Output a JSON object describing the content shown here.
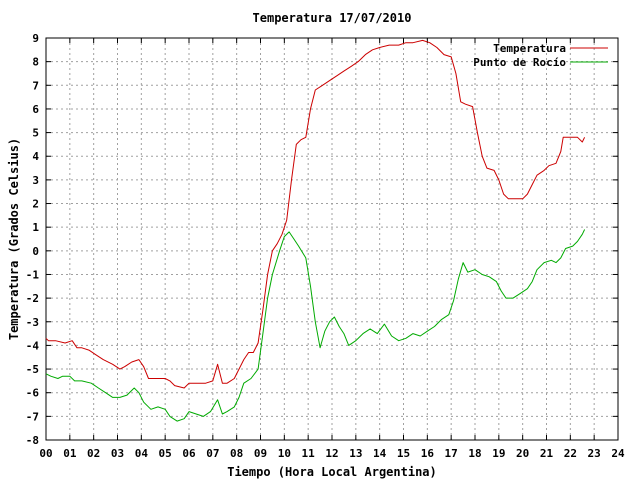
{
  "chart_data": {
    "type": "line",
    "title": "Temperatura 17/07/2010",
    "xlabel": "Tiempo (Hora Local Argentina)",
    "ylabel": "Temperatura (Grados Celsius)",
    "xlim": [
      0,
      24
    ],
    "ylim": [
      -8,
      9
    ],
    "x_ticks": [
      "00",
      "01",
      "02",
      "03",
      "04",
      "05",
      "06",
      "07",
      "08",
      "09",
      "10",
      "11",
      "12",
      "13",
      "14",
      "15",
      "16",
      "17",
      "18",
      "19",
      "20",
      "21",
      "22",
      "23",
      "24"
    ],
    "y_ticks": [
      "-8",
      "-7",
      "-6",
      "-5",
      "-4",
      "-3",
      "-2",
      "-1",
      "0",
      "1",
      "2",
      "3",
      "4",
      "5",
      "6",
      "7",
      "8",
      "9"
    ],
    "grid": true,
    "legend_position": "top-right",
    "colors": {
      "temperatura": "#cc0000",
      "punto_de_rocio": "#00aa00",
      "grid": "#a0a0a0"
    },
    "series": [
      {
        "name": "Temperatura",
        "color": "#cc0000",
        "points": [
          [
            0.0,
            -3.7
          ],
          [
            0.1,
            -3.8
          ],
          [
            0.4,
            -3.8
          ],
          [
            0.8,
            -3.9
          ],
          [
            1.1,
            -3.8
          ],
          [
            1.3,
            -4.1
          ],
          [
            1.5,
            -4.1
          ],
          [
            1.8,
            -4.2
          ],
          [
            2.1,
            -4.4
          ],
          [
            2.4,
            -4.6
          ],
          [
            2.8,
            -4.8
          ],
          [
            3.1,
            -5.0
          ],
          [
            3.3,
            -4.9
          ],
          [
            3.6,
            -4.7
          ],
          [
            3.9,
            -4.6
          ],
          [
            4.1,
            -4.9
          ],
          [
            4.3,
            -5.4
          ],
          [
            4.7,
            -5.4
          ],
          [
            5.0,
            -5.4
          ],
          [
            5.2,
            -5.5
          ],
          [
            5.4,
            -5.7
          ],
          [
            5.8,
            -5.8
          ],
          [
            6.0,
            -5.6
          ],
          [
            6.3,
            -5.6
          ],
          [
            6.7,
            -5.6
          ],
          [
            7.0,
            -5.5
          ],
          [
            7.2,
            -4.8
          ],
          [
            7.4,
            -5.6
          ],
          [
            7.6,
            -5.6
          ],
          [
            7.9,
            -5.4
          ],
          [
            8.1,
            -5.0
          ],
          [
            8.3,
            -4.6
          ],
          [
            8.5,
            -4.3
          ],
          [
            8.7,
            -4.3
          ],
          [
            8.9,
            -3.9
          ],
          [
            9.1,
            -2.5
          ],
          [
            9.3,
            -1.0
          ],
          [
            9.5,
            0.0
          ],
          [
            9.7,
            0.3
          ],
          [
            9.9,
            0.7
          ],
          [
            10.1,
            1.3
          ],
          [
            10.3,
            3.0
          ],
          [
            10.5,
            4.5
          ],
          [
            10.7,
            4.7
          ],
          [
            10.9,
            4.8
          ],
          [
            11.1,
            6.0
          ],
          [
            11.3,
            6.8
          ],
          [
            11.6,
            7.0
          ],
          [
            11.9,
            7.2
          ],
          [
            12.2,
            7.4
          ],
          [
            12.5,
            7.6
          ],
          [
            12.8,
            7.8
          ],
          [
            13.1,
            8.0
          ],
          [
            13.4,
            8.3
          ],
          [
            13.7,
            8.5
          ],
          [
            14.0,
            8.6
          ],
          [
            14.4,
            8.7
          ],
          [
            14.8,
            8.7
          ],
          [
            15.1,
            8.8
          ],
          [
            15.4,
            8.8
          ],
          [
            15.8,
            8.9
          ],
          [
            16.1,
            8.8
          ],
          [
            16.4,
            8.6
          ],
          [
            16.7,
            8.3
          ],
          [
            17.0,
            8.2
          ],
          [
            17.2,
            7.5
          ],
          [
            17.4,
            6.3
          ],
          [
            17.6,
            6.2
          ],
          [
            17.9,
            6.1
          ],
          [
            18.1,
            5.0
          ],
          [
            18.3,
            4.0
          ],
          [
            18.5,
            3.5
          ],
          [
            18.8,
            3.4
          ],
          [
            19.0,
            3.0
          ],
          [
            19.2,
            2.4
          ],
          [
            19.4,
            2.2
          ],
          [
            19.7,
            2.2
          ],
          [
            20.0,
            2.2
          ],
          [
            20.2,
            2.4
          ],
          [
            20.4,
            2.8
          ],
          [
            20.6,
            3.2
          ],
          [
            20.9,
            3.4
          ],
          [
            21.1,
            3.6
          ],
          [
            21.4,
            3.7
          ],
          [
            21.6,
            4.2
          ],
          [
            21.7,
            4.8
          ],
          [
            22.0,
            4.8
          ],
          [
            22.3,
            4.8
          ],
          [
            22.5,
            4.6
          ],
          [
            22.6,
            4.8
          ]
        ]
      },
      {
        "name": "Punto de Rocío",
        "color": "#00aa00",
        "points": [
          [
            0.0,
            -5.2
          ],
          [
            0.2,
            -5.3
          ],
          [
            0.5,
            -5.4
          ],
          [
            0.7,
            -5.3
          ],
          [
            1.0,
            -5.3
          ],
          [
            1.2,
            -5.5
          ],
          [
            1.5,
            -5.5
          ],
          [
            1.9,
            -5.6
          ],
          [
            2.2,
            -5.8
          ],
          [
            2.5,
            -6.0
          ],
          [
            2.8,
            -6.2
          ],
          [
            3.1,
            -6.2
          ],
          [
            3.4,
            -6.1
          ],
          [
            3.7,
            -5.8
          ],
          [
            3.9,
            -6.0
          ],
          [
            4.1,
            -6.4
          ],
          [
            4.4,
            -6.7
          ],
          [
            4.7,
            -6.6
          ],
          [
            5.0,
            -6.7
          ],
          [
            5.2,
            -7.0
          ],
          [
            5.5,
            -7.2
          ],
          [
            5.8,
            -7.1
          ],
          [
            6.0,
            -6.8
          ],
          [
            6.3,
            -6.9
          ],
          [
            6.6,
            -7.0
          ],
          [
            6.9,
            -6.8
          ],
          [
            7.2,
            -6.3
          ],
          [
            7.4,
            -6.9
          ],
          [
            7.6,
            -6.8
          ],
          [
            7.9,
            -6.6
          ],
          [
            8.1,
            -6.2
          ],
          [
            8.3,
            -5.6
          ],
          [
            8.6,
            -5.4
          ],
          [
            8.9,
            -5.0
          ],
          [
            9.1,
            -3.5
          ],
          [
            9.3,
            -2.0
          ],
          [
            9.5,
            -1.0
          ],
          [
            9.8,
            0.0
          ],
          [
            10.0,
            0.6
          ],
          [
            10.2,
            0.8
          ],
          [
            10.4,
            0.5
          ],
          [
            10.6,
            0.2
          ],
          [
            10.9,
            -0.3
          ],
          [
            11.1,
            -1.5
          ],
          [
            11.3,
            -3.0
          ],
          [
            11.5,
            -4.1
          ],
          [
            11.7,
            -3.4
          ],
          [
            11.9,
            -3.0
          ],
          [
            12.1,
            -2.8
          ],
          [
            12.3,
            -3.2
          ],
          [
            12.5,
            -3.5
          ],
          [
            12.7,
            -4.0
          ],
          [
            13.0,
            -3.8
          ],
          [
            13.3,
            -3.5
          ],
          [
            13.6,
            -3.3
          ],
          [
            13.9,
            -3.5
          ],
          [
            14.2,
            -3.1
          ],
          [
            14.5,
            -3.6
          ],
          [
            14.8,
            -3.8
          ],
          [
            15.1,
            -3.7
          ],
          [
            15.4,
            -3.5
          ],
          [
            15.7,
            -3.6
          ],
          [
            16.0,
            -3.4
          ],
          [
            16.3,
            -3.2
          ],
          [
            16.6,
            -2.9
          ],
          [
            16.9,
            -2.7
          ],
          [
            17.1,
            -2.1
          ],
          [
            17.3,
            -1.2
          ],
          [
            17.5,
            -0.5
          ],
          [
            17.7,
            -0.9
          ],
          [
            18.0,
            -0.8
          ],
          [
            18.3,
            -1.0
          ],
          [
            18.6,
            -1.1
          ],
          [
            18.9,
            -1.3
          ],
          [
            19.1,
            -1.7
          ],
          [
            19.3,
            -2.0
          ],
          [
            19.6,
            -2.0
          ],
          [
            19.9,
            -1.8
          ],
          [
            20.2,
            -1.6
          ],
          [
            20.4,
            -1.3
          ],
          [
            20.6,
            -0.8
          ],
          [
            20.9,
            -0.5
          ],
          [
            21.2,
            -0.4
          ],
          [
            21.4,
            -0.5
          ],
          [
            21.6,
            -0.3
          ],
          [
            21.8,
            0.1
          ],
          [
            22.1,
            0.2
          ],
          [
            22.3,
            0.4
          ],
          [
            22.5,
            0.7
          ],
          [
            22.6,
            0.9
          ]
        ]
      }
    ]
  }
}
